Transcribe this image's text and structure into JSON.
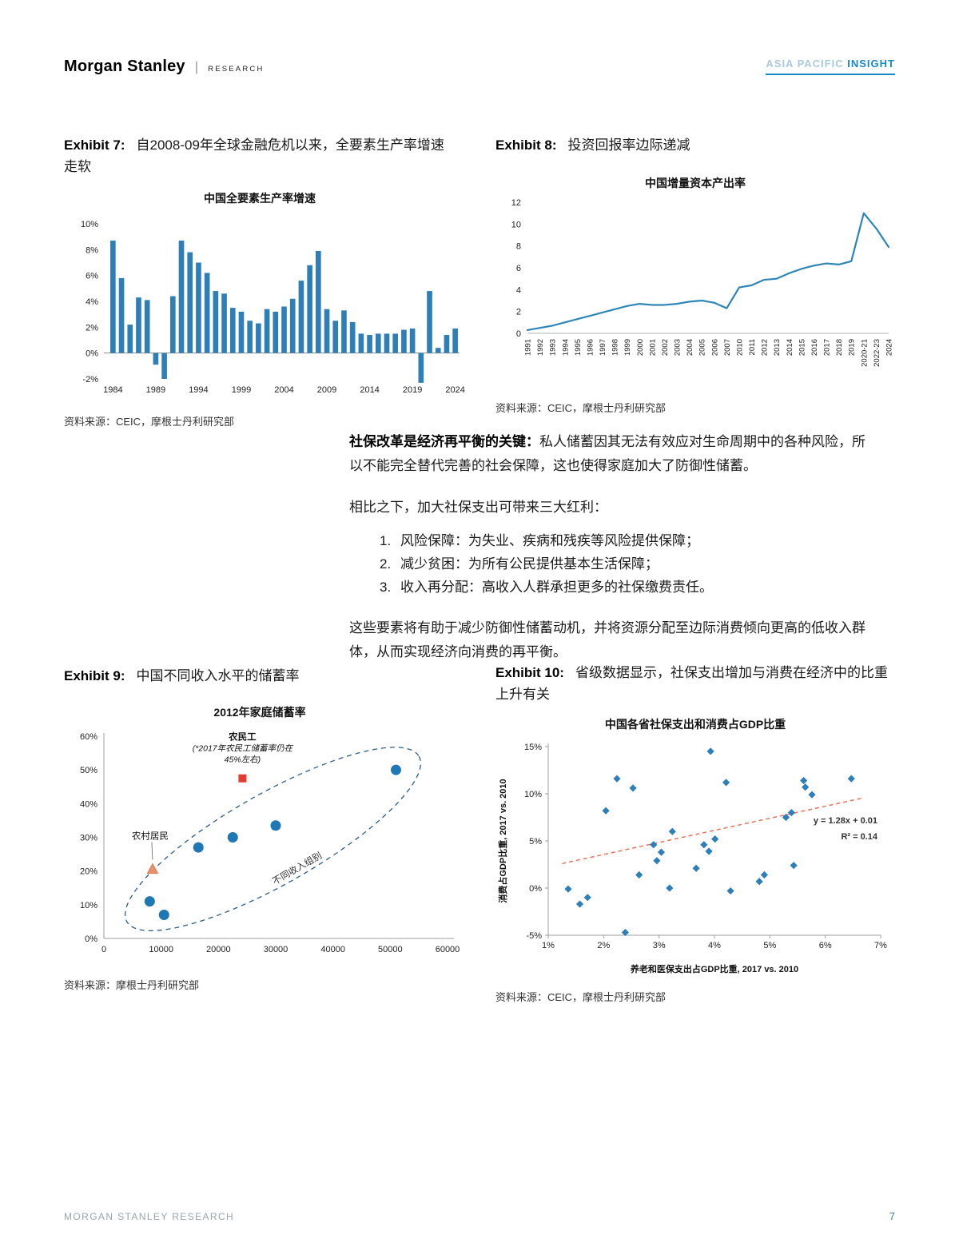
{
  "page": {
    "header": {
      "brand": "Morgan Stanley",
      "brand_divider": "|",
      "brand_sub": "RESEARCH",
      "banner_region": "ASIA PACIFIC",
      "banner_product": "INSIGHT"
    },
    "footer": {
      "left": "MORGAN STANLEY RESEARCH",
      "page_number": "7"
    }
  },
  "exhibits": {
    "ex7": {
      "label": "Exhibit 7:",
      "title": "自2008-09年全球金融危机以来，全要素生产率增速走软",
      "source": "资料来源：CEIC，摩根士丹利研究部"
    },
    "ex8": {
      "label": "Exhibit 8:",
      "title": "投资回报率边际递减",
      "source": "资料来源：CEIC，摩根士丹利研究部"
    },
    "ex9": {
      "label": "Exhibit 9:",
      "title": "中国不同收入水平的储蓄率",
      "source": "资料来源：摩根士丹利研究部"
    },
    "ex10": {
      "label": "Exhibit 10:",
      "title": "省级数据显示，社保支出增加与消费在经济中的比重上升有关",
      "source": "资料来源：CEIC，摩根士丹利研究部"
    }
  },
  "body": {
    "para1_lead": "社保改革是经济再平衡的关键：",
    "para1_text": "私人储蓄因其无法有效应对生命周期中的各种风险，所以不能完全替代完善的社会保障，这也使得家庭加大了防御性储蓄。",
    "para2": "相比之下，加大社保支出可带来三大红利：",
    "list": [
      {
        "num": "1.",
        "text": "风险保障：为失业、疾病和残疾等风险提供保障；"
      },
      {
        "num": "2.",
        "text": "减少贫困：为所有公民提供基本生活保障；"
      },
      {
        "num": "3.",
        "text": "收入再分配：高收入人群承担更多的社保缴费责任。"
      }
    ],
    "para3": "这些要素将有助于减少防御性储蓄动机，并将资源分配至边际消费倾向更高的低收入群体，从而实现经济向消费的再平衡。"
  },
  "chart_data": [
    {
      "id": "tfp-bars",
      "type": "bar",
      "title": "中国全要素生产率增速",
      "x_start": 1984,
      "years_ticks": [
        1984,
        1989,
        1994,
        1999,
        2004,
        2009,
        2014,
        2019,
        2024
      ],
      "values": [
        8.7,
        5.8,
        2.2,
        4.3,
        4.1,
        -0.9,
        -2.0,
        4.4,
        8.7,
        7.8,
        7.0,
        6.2,
        4.8,
        4.6,
        3.5,
        3.2,
        2.5,
        2.3,
        3.4,
        3.2,
        3.6,
        4.2,
        5.6,
        6.8,
        7.9,
        3.4,
        2.5,
        3.3,
        2.4,
        1.5,
        1.4,
        1.5,
        1.5,
        1.5,
        1.8,
        1.9,
        -2.3,
        4.8,
        0.4,
        1.4,
        1.9
      ],
      "ylim": [
        -2,
        10
      ],
      "ytick_vals": [
        10,
        8,
        6,
        4,
        2,
        0,
        -2
      ],
      "ytick_labels": [
        "10%",
        "8%",
        "6%",
        "4%",
        "2%",
        "0%",
        "-2%"
      ],
      "color": "#2e7fb8"
    },
    {
      "id": "icor-line",
      "type": "line",
      "title": "中国增量资本产出率",
      "x_labels": [
        "1991",
        "1992",
        "1993",
        "1994",
        "1995",
        "1996",
        "1997",
        "1998",
        "1999",
        "2000",
        "2001",
        "2002",
        "2003",
        "2004",
        "2005",
        "2006",
        "2007",
        "2010",
        "2011",
        "2012",
        "2013",
        "2014",
        "2015",
        "2016",
        "2017",
        "2018",
        "2019",
        "2020-21",
        "2022-23",
        "2024"
      ],
      "values": [
        0.3,
        0.5,
        0.7,
        1.0,
        1.3,
        1.6,
        1.9,
        2.2,
        2.5,
        2.7,
        2.6,
        2.6,
        2.7,
        2.9,
        3.0,
        2.8,
        2.3,
        4.2,
        4.4,
        4.9,
        5.0,
        5.5,
        5.9,
        6.2,
        6.4,
        6.3,
        6.6,
        11.0,
        9.6,
        7.9
      ],
      "ylim": [
        0,
        12
      ],
      "yticks": [
        0,
        2,
        4,
        6,
        8,
        10,
        12
      ],
      "color": "#2e86b8"
    },
    {
      "id": "savings-scatter",
      "type": "scatter",
      "title": "2012年家庭储蓄率",
      "points": [
        [
          8000,
          11
        ],
        [
          10500,
          7
        ],
        [
          16500,
          27
        ],
        [
          22500,
          30
        ],
        [
          30000,
          33.5
        ],
        [
          51000,
          50
        ]
      ],
      "xlim": [
        0,
        60000
      ],
      "ylim": [
        0,
        60
      ],
      "xticks": [
        0,
        10000,
        20000,
        30000,
        40000,
        50000,
        60000
      ],
      "ytick_labels": [
        "0%",
        "10%",
        "20%",
        "30%",
        "40%",
        "50%",
        "60%"
      ],
      "annotations": {
        "migrant_label_title": "农民工",
        "migrant_label_line1": "(*2017年农民工储蓄率仍在",
        "migrant_label_line2": "45%左右)",
        "migrant_point": [
          24200,
          47.5
        ],
        "rural_label": "农村居民",
        "rural_point": [
          8500,
          20.5
        ],
        "ellipse_label": "不同收入组别"
      },
      "colors": {
        "dot": "#1f77b4",
        "square": "#e03c31",
        "triangle": "#e8906d",
        "ellipse": "#2b5d8a"
      }
    },
    {
      "id": "provinces-scatter",
      "type": "scatter",
      "title": "中国各省社保支出和消费占GDP比重",
      "xlabel": "养老和医保支出占GDP比重, 2017 vs. 2010",
      "ylabel": "消费占GDP比重, 2017 vs. 2010",
      "points": [
        [
          1.36,
          -0.1
        ],
        [
          1.57,
          -1.7
        ],
        [
          1.71,
          -1.0
        ],
        [
          2.04,
          8.2
        ],
        [
          2.24,
          11.6
        ],
        [
          2.39,
          -4.7
        ],
        [
          2.53,
          10.6
        ],
        [
          2.64,
          1.4
        ],
        [
          2.9,
          4.6
        ],
        [
          2.96,
          2.9
        ],
        [
          3.04,
          3.8
        ],
        [
          3.19,
          0.0
        ],
        [
          3.24,
          6.0
        ],
        [
          3.67,
          2.1
        ],
        [
          3.81,
          4.6
        ],
        [
          3.9,
          3.9
        ],
        [
          3.93,
          14.5
        ],
        [
          4.01,
          5.2
        ],
        [
          4.21,
          11.2
        ],
        [
          4.29,
          -0.3
        ],
        [
          4.81,
          0.7
        ],
        [
          4.9,
          1.4
        ],
        [
          5.29,
          7.5
        ],
        [
          5.39,
          8.0
        ],
        [
          5.43,
          2.4
        ],
        [
          5.61,
          11.4
        ],
        [
          5.64,
          10.7
        ],
        [
          5.76,
          9.9
        ],
        [
          6.47,
          11.6
        ]
      ],
      "xlim": [
        1,
        7
      ],
      "ylim": [
        -5,
        15
      ],
      "xtick_labels": [
        "1%",
        "2%",
        "3%",
        "4%",
        "5%",
        "6%",
        "7%"
      ],
      "ytick_labels": [
        "-5%",
        "0%",
        "5%",
        "10%",
        "15%"
      ],
      "trendline": {
        "slope": 1.28,
        "intercept_pct": 1.0,
        "x_from": 1.25,
        "x_to": 6.65,
        "equation": "y = 1.28x + 0.01",
        "r2": "R² = 0.14"
      },
      "colors": {
        "marker": "#2e7fb8",
        "trend": "#e8735a"
      }
    }
  ]
}
